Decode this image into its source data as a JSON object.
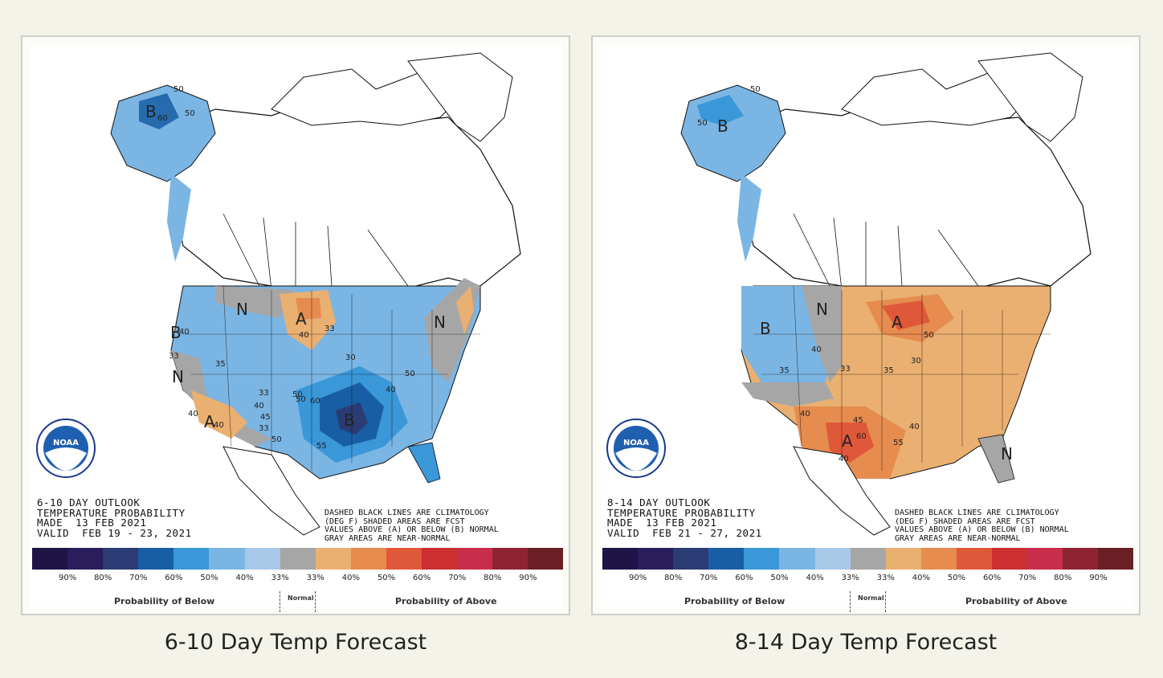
{
  "panels": [
    {
      "caption": "6-10 Day Temp Forecast",
      "info_lines": [
        "6-10 DAY OUTLOOK",
        "TEMPERATURE PROBABILITY",
        "MADE  13 FEB 2021",
        "VALID  FEB 19 - 23, 2021"
      ],
      "note_lines": [
        "DASHED BLACK LINES ARE CLIMATOLOGY",
        "(DEG F) SHADED AREAS ARE FCST",
        "VALUES ABOVE (A) OR BELOW (B) NORMAL",
        "GRAY AREAS ARE NEAR-NORMAL"
      ],
      "region_labels": [
        "B",
        "B",
        "N",
        "N",
        "A",
        "B",
        "A",
        "N"
      ],
      "contour_labels": [
        "50",
        "60",
        "50",
        "40",
        "33",
        "40",
        "33",
        "35",
        "33",
        "40",
        "33",
        "60",
        "50",
        "40",
        "45",
        "50",
        "55",
        "50",
        "40",
        "30",
        "50",
        "40"
      ]
    },
    {
      "caption": "8-14 Day Temp Forecast",
      "info_lines": [
        "8-14 DAY OUTLOOK",
        "TEMPERATURE PROBABILITY",
        "MADE  13 FEB 2021",
        "VALID  FEB 21 - 27, 2021"
      ],
      "note_lines": [
        "DASHED BLACK LINES ARE CLIMATOLOGY",
        "(DEG F) SHADED AREAS ARE FCST",
        "VALUES ABOVE (A) OR BELOW (B) NORMAL",
        "GRAY AREAS ARE NEAR-NORMAL"
      ],
      "region_labels": [
        "B",
        "B",
        "N",
        "A",
        "A",
        "N"
      ],
      "contour_labels": [
        "50",
        "50",
        "40",
        "35",
        "33",
        "50",
        "35",
        "45",
        "40",
        "40",
        "55",
        "60",
        "40",
        "30"
      ]
    }
  ],
  "legend": {
    "colors": [
      "#1e1446",
      "#2a1d5c",
      "#2b3b73",
      "#185ea5",
      "#3a97d8",
      "#7bb5e3",
      "#a8c8e8",
      "#a6a6a6",
      "#eab071",
      "#e68c4f",
      "#e0583a",
      "#cc2f30",
      "#c82e4a",
      "#8e2431",
      "#6a1f24"
    ],
    "percent_labels": [
      "90%",
      "80%",
      "70%",
      "60%",
      "50%",
      "40%",
      "33%",
      "33%",
      "40%",
      "50%",
      "60%",
      "70%",
      "80%",
      "90%"
    ],
    "below_label": "Probability of Below",
    "above_label": "Probability of Above",
    "normal_label": "Normal"
  },
  "logo_text": "NOAA"
}
